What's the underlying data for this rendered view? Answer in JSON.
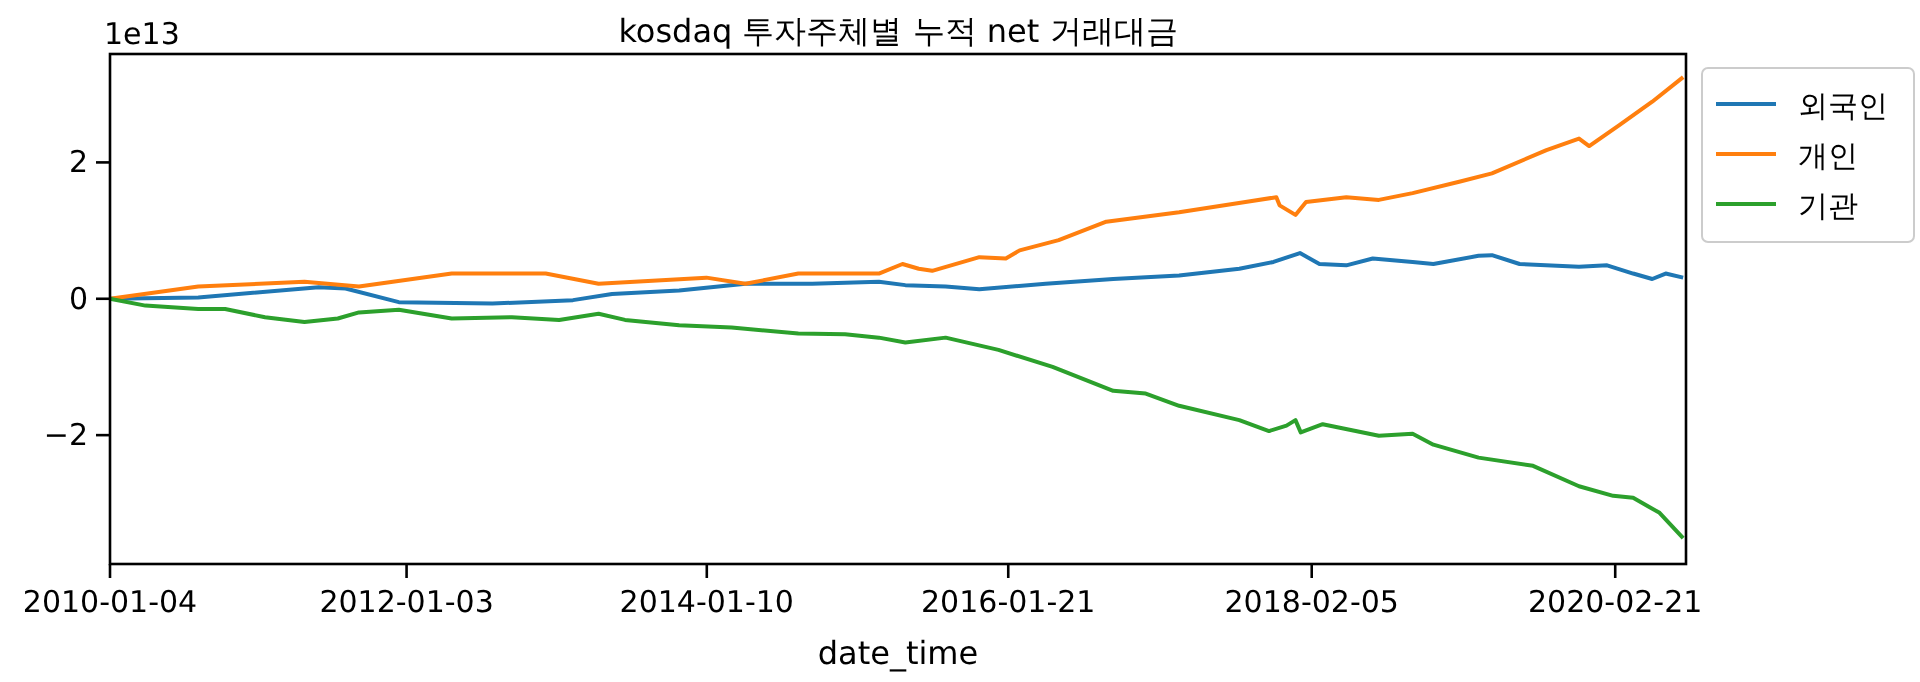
{
  "chart_data": {
    "type": "line",
    "title": "kosdaq 투자주체별 누적 net 거래대금",
    "xlabel": "date_time",
    "annotations": [
      "1e13"
    ],
    "xlim": [
      "2010-01-04",
      "2020-08-13"
    ],
    "ylim": [
      -3.89,
      3.59
    ],
    "xticks": [
      "2010-01-04",
      "2012-01-03",
      "2014-01-10",
      "2016-01-21",
      "2018-02-05",
      "2020-02-21"
    ],
    "yticks": [
      -2,
      0,
      2
    ],
    "legend": "top right",
    "grid": false,
    "line_style": "solid",
    "marker": "none",
    "series": [
      {
        "name": "외국인",
        "color": "#1f77b4",
        "x": [
          "2010-01-04",
          "2010-08-09",
          "2011-06-01",
          "2011-08-06",
          "2011-12-15",
          "2012-08-01",
          "2013-02-15",
          "2013-05-22",
          "2013-11-03",
          "2014-04-15",
          "2014-09-26",
          "2015-03-09",
          "2015-05-13",
          "2015-08-20",
          "2015-11-11",
          "2016-04-22",
          "2016-10-05",
          "2017-03-16",
          "2017-08-11",
          "2017-11-03",
          "2018-01-07",
          "2018-02-24",
          "2018-05-01",
          "2018-07-05",
          "2018-10-11",
          "2018-12-01",
          "2019-03-22",
          "2019-04-24",
          "2019-07-01",
          "2019-11-24",
          "2020-02-01",
          "2020-04-05",
          "2020-05-22",
          "2020-06-24",
          "2020-08-06"
        ],
        "values": [
          0,
          0.02,
          0.17,
          0.15,
          -0.05,
          -0.07,
          -0.02,
          0.07,
          0.12,
          0.22,
          0.22,
          0.25,
          0.2,
          0.18,
          0.14,
          0.22,
          0.29,
          0.34,
          0.44,
          0.54,
          0.67,
          0.51,
          0.49,
          0.59,
          0.54,
          0.51,
          0.63,
          0.64,
          0.51,
          0.47,
          0.49,
          0.37,
          0.29,
          0.37,
          0.31
        ]
      },
      {
        "name": "개인",
        "color": "#ff7f0e",
        "x": [
          "2010-01-04",
          "2010-08-09",
          "2011-04-27",
          "2011-09-08",
          "2012-04-23",
          "2012-12-10",
          "2013-04-19",
          "2014-01-09",
          "2014-04-15",
          "2014-08-23",
          "2015-03-09",
          "2015-05-06",
          "2015-06-15",
          "2015-07-18",
          "2015-11-11",
          "2016-01-15",
          "2016-02-18",
          "2016-05-24",
          "2016-09-18",
          "2017-03-16",
          "2017-08-26",
          "2017-11-10",
          "2017-11-18",
          "2017-12-27",
          "2018-01-22",
          "2018-05-01",
          "2018-07-20",
          "2018-10-11",
          "2019-02-05",
          "2019-04-24",
          "2019-09-05",
          "2019-11-24",
          "2019-12-19",
          "2020-03-03",
          "2020-05-22",
          "2020-08-06"
        ],
        "values": [
          0,
          0.18,
          0.25,
          0.18,
          0.37,
          0.37,
          0.22,
          0.31,
          0.22,
          0.37,
          0.37,
          0.51,
          0.44,
          0.41,
          0.61,
          0.59,
          0.71,
          0.86,
          1.13,
          1.27,
          1.42,
          1.49,
          1.37,
          1.23,
          1.42,
          1.49,
          1.45,
          1.55,
          1.72,
          1.84,
          2.18,
          2.35,
          2.24,
          2.55,
          2.89,
          3.25
        ]
      },
      {
        "name": "기관",
        "color": "#2ca02c",
        "x": [
          "2010-01-04",
          "2010-04-01",
          "2010-08-09",
          "2010-10-14",
          "2011-01-20",
          "2011-04-27",
          "2011-07-18",
          "2011-09-08",
          "2011-12-15",
          "2012-04-23",
          "2012-09-18",
          "2013-01-12",
          "2013-04-19",
          "2013-06-23",
          "2013-11-03",
          "2014-03-12",
          "2014-08-23",
          "2014-12-16",
          "2015-03-09",
          "2015-05-13",
          "2015-08-20",
          "2015-12-28",
          "2016-05-09",
          "2016-10-05",
          "2016-12-24",
          "2017-03-16",
          "2017-08-11",
          "2017-10-23",
          "2017-12-05",
          "2017-12-27",
          "2018-01-09",
          "2018-03-04",
          "2018-07-20",
          "2018-10-11",
          "2018-12-01",
          "2019-03-22",
          "2019-08-03",
          "2019-11-24",
          "2020-02-16",
          "2020-04-05",
          "2020-06-09",
          "2020-08-06"
        ],
        "values": [
          0,
          -0.1,
          -0.15,
          -0.15,
          -0.27,
          -0.34,
          -0.29,
          -0.2,
          -0.16,
          -0.29,
          -0.27,
          -0.31,
          -0.22,
          -0.31,
          -0.39,
          -0.42,
          -0.51,
          -0.52,
          -0.57,
          -0.64,
          -0.57,
          -0.75,
          -1.0,
          -1.35,
          -1.39,
          -1.57,
          -1.78,
          -1.94,
          -1.86,
          -1.78,
          -1.96,
          -1.84,
          -2.01,
          -1.98,
          -2.14,
          -2.33,
          -2.45,
          -2.75,
          -2.89,
          -2.92,
          -3.14,
          -3.51
        ]
      }
    ]
  }
}
